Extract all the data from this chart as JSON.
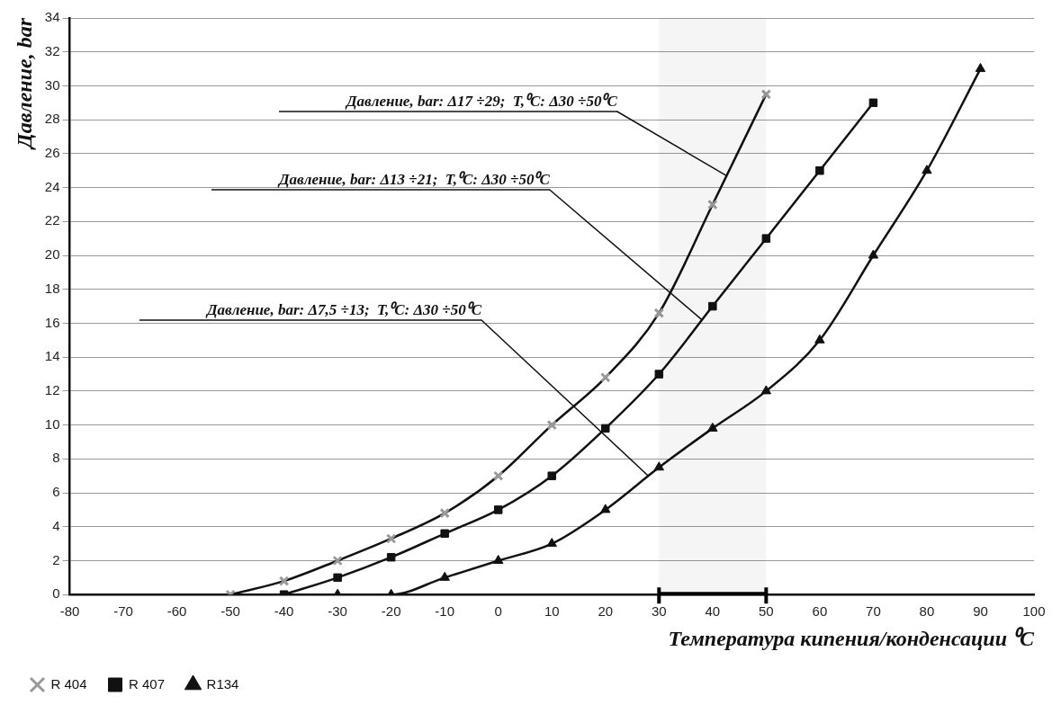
{
  "chart_data": {
    "type": "line",
    "xlabel": "Температура кипения/конденсации ⁰C",
    "ylabel": "Давление, bar",
    "xlim": [
      -80,
      100
    ],
    "xticks": [
      -80,
      -70,
      -60,
      -50,
      -40,
      -30,
      -20,
      -10,
      0,
      10,
      20,
      30,
      40,
      50,
      60,
      70,
      80,
      90,
      100
    ],
    "ylim": [
      0,
      34
    ],
    "yticks": [
      0,
      2,
      4,
      6,
      8,
      10,
      12,
      14,
      16,
      18,
      20,
      22,
      24,
      26,
      28,
      30,
      32,
      34
    ],
    "grid": "y",
    "legend": "bottom left",
    "line_style": "solid",
    "series": [
      {
        "name": "R 404",
        "color": "#999999",
        "marker": "cross",
        "x": [
          -50,
          -40,
          -30,
          -20,
          -10,
          0,
          10,
          20,
          30,
          40,
          50
        ],
        "values": [
          0,
          0.8,
          2,
          3.3,
          4.8,
          7,
          10,
          12.8,
          16.6,
          23,
          29.5
        ]
      },
      {
        "name": "R 407",
        "color": "#111111",
        "marker": "square",
        "x": [
          -40,
          -30,
          -20,
          -10,
          0,
          10,
          20,
          30,
          40,
          50,
          60,
          70
        ],
        "values": [
          0,
          1,
          2.2,
          3.6,
          5,
          7,
          9.8,
          13,
          17,
          21,
          25,
          29
        ]
      },
      {
        "name": "R134",
        "color": "#111111",
        "marker": "triangle",
        "x": [
          -30,
          -20,
          -10,
          0,
          10,
          20,
          30,
          40,
          50,
          60,
          70,
          80,
          90
        ],
        "values": [
          0,
          0,
          1,
          2,
          3,
          5,
          7.5,
          9.8,
          12,
          15,
          20,
          25,
          31
        ]
      }
    ],
    "bands": [
      {
        "axis": "x",
        "from": 30,
        "to": 50,
        "color": "#000000"
      }
    ],
    "annotations": [
      {
        "text": "Давление, bar: Δ17 ÷29;  T,⁰C: Δ30 ÷50⁰C",
        "x": 42.6,
        "y": 24.7
      },
      {
        "text": "Давление, bar: Δ13 ÷21;  T,⁰C: Δ30 ÷50⁰C",
        "x": 38,
        "y": 16.2
      },
      {
        "text": "Давление, bar: Δ7,5 ÷13;  T,⁰C: Δ30 ÷50⁰C",
        "x": 28,
        "y": 7
      }
    ]
  }
}
